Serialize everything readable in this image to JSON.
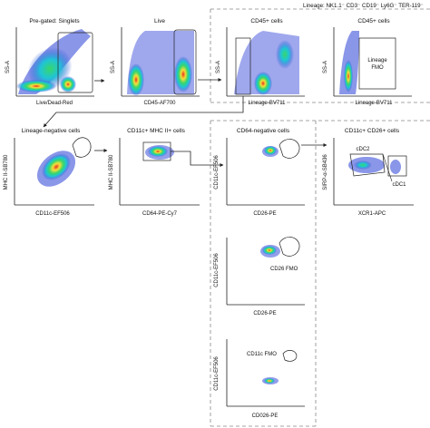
{
  "header": {
    "lineage_label": "Lineage: NK1.1⁻ CD3⁻ CD19⁻ Ly6G⁻ TER-119⁻"
  },
  "plots": [
    {
      "title": "Pre-gated: Singlets",
      "xlabel": "Live/Dead-Red",
      "ylabel": "SS-A"
    },
    {
      "title": "Live",
      "xlabel": "CD45-AF700",
      "ylabel": "SS-A"
    },
    {
      "title": "CD45+ cells",
      "xlabel": "Lineage-BV711",
      "ylabel": "SS-A"
    },
    {
      "title": "CD45+ cells",
      "xlabel": "Lineage-BV711",
      "ylabel": "SS-A",
      "note": "Lineage\nFMO"
    },
    {
      "title": "Lineage-negative cells",
      "xlabel": "CD11c-EF506",
      "ylabel": "MHC II-SB780"
    },
    {
      "title": "CD11c+ MHC II+ cells",
      "xlabel": "CD64-PE-Cy7",
      "ylabel": "MHC II-SB780"
    },
    {
      "title": "CD64-negative cells",
      "xlabel": "CD26-PE",
      "ylabel": "CD11c-EF506"
    },
    {
      "title": "CD11c+ CD26+ cells",
      "xlabel": "XCR1-APC",
      "ylabel": "SIRP-α-SB436",
      "gate1": "cDC2",
      "gate2": "cDC1"
    },
    {
      "title": "",
      "xlabel": "CD26-PE",
      "ylabel": "CD11c-EF506",
      "note": "CD26 FMO"
    },
    {
      "title": "",
      "xlabel": "CD026-PE",
      "ylabel": "CD11c-EF506",
      "note": "CD11c FMO"
    }
  ],
  "colors": {
    "density_low": "#2a3fd6",
    "density_mid": "#1fc4d8",
    "density_mid2": "#37d66b",
    "density_high": "#f6e03a",
    "density_peak": "#e8321e",
    "dashed_line": "#888888",
    "arrow": "#222222"
  }
}
